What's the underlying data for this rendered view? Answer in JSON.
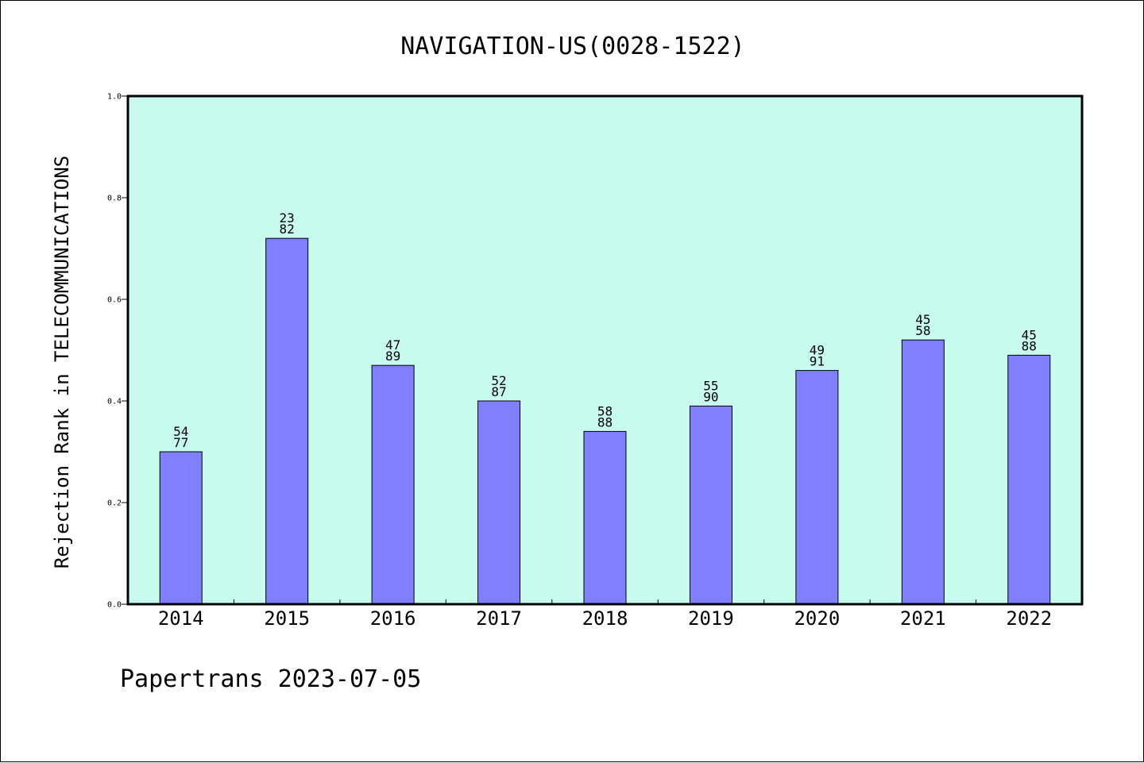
{
  "colors": {
    "background": "#ffffff",
    "plot_background": "#c8fcee",
    "bar_fill": "#8080ff",
    "bar_stroke": "#000000",
    "axis": "#000000"
  },
  "chart_data": {
    "type": "bar",
    "title": "NAVIGATION-US(0028-1522)",
    "ylabel": "Rejection Rank in TELECOMMUNICATIONS",
    "xlabel": "",
    "footer": "Papertrans 2023-07-05",
    "categories": [
      "2014",
      "2015",
      "2016",
      "2017",
      "2018",
      "2019",
      "2020",
      "2021",
      "2022"
    ],
    "values": [
      0.3,
      0.72,
      0.47,
      0.4,
      0.34,
      0.39,
      0.46,
      0.52,
      0.49
    ],
    "label_top": [
      "54",
      "23",
      "47",
      "52",
      "58",
      "55",
      "49",
      "45",
      "45"
    ],
    "label_bottom": [
      "77",
      "82",
      "89",
      "87",
      "88",
      "90",
      "91",
      "58",
      "88"
    ],
    "ylim": [
      0,
      1.0
    ],
    "yticks": [
      0.0,
      0.2,
      0.4,
      0.6,
      0.8,
      1.0
    ],
    "ytick_labels": [
      "0.0",
      "0.2",
      "0.4",
      "0.6",
      "0.8",
      "1.0"
    ],
    "grid": false,
    "legend": "none"
  }
}
